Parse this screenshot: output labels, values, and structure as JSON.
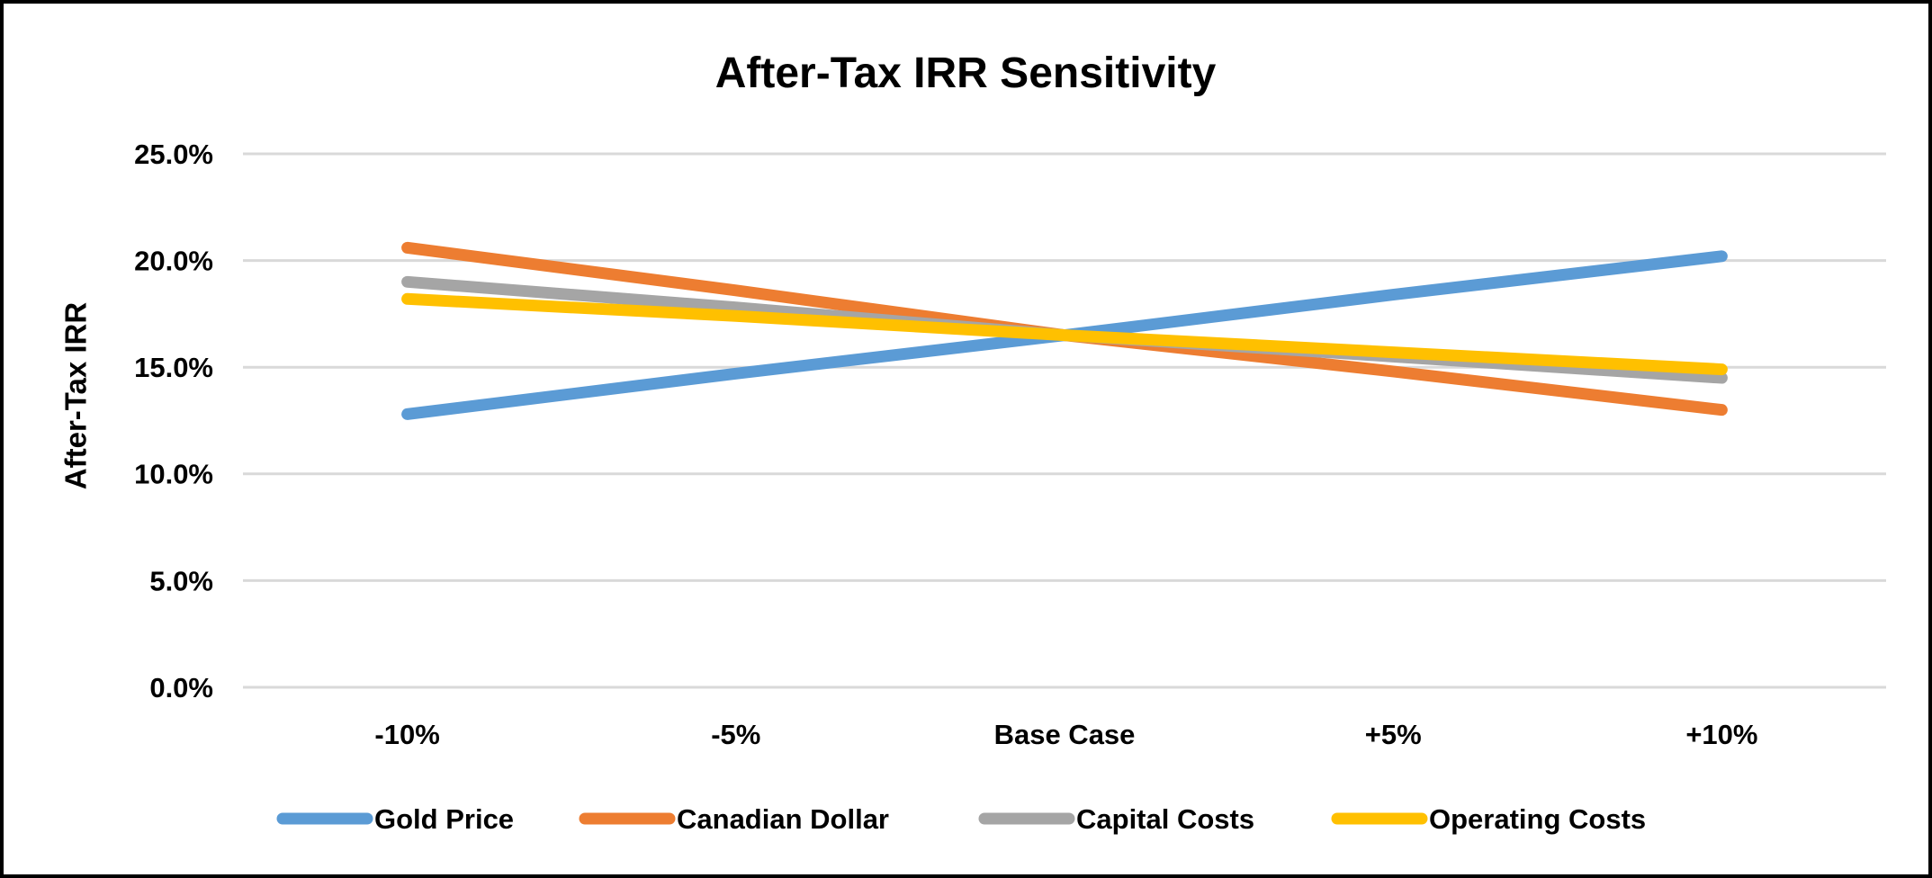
{
  "window": {
    "background_color": "#FFFFFF",
    "border_color": "#000000"
  },
  "chart_data": {
    "type": "line",
    "title": "After-Tax IRR Sensitivity",
    "xlabel": "",
    "ylabel": "After-Tax IRR",
    "categories": [
      "-10%",
      "-5%",
      "Base Case",
      "+5%",
      "+10%"
    ],
    "series": [
      {
        "name": "Gold Price",
        "color": "#5B9BD5",
        "values": [
          12.8,
          14.7,
          16.5,
          18.4,
          20.2
        ]
      },
      {
        "name": "Canadian Dollar",
        "color": "#ED7D31",
        "values": [
          20.6,
          18.6,
          16.5,
          14.8,
          13.0
        ]
      },
      {
        "name": "Capital Costs",
        "color": "#A5A5A5",
        "values": [
          19.0,
          17.8,
          16.5,
          15.5,
          14.5
        ]
      },
      {
        "name": "Operating Costs",
        "color": "#FFC000",
        "values": [
          18.2,
          17.4,
          16.5,
          15.7,
          14.9
        ]
      }
    ],
    "y_axis": {
      "min": 0,
      "max": 25,
      "step": 5,
      "tick_labels": [
        "0.0%",
        "5.0%",
        "10.0%",
        "15.0%",
        "20.0%",
        "25.0%"
      ]
    },
    "grid": true,
    "gridline_color": "#D9D9D9",
    "legend_position": "bottom",
    "line_width": 13
  }
}
